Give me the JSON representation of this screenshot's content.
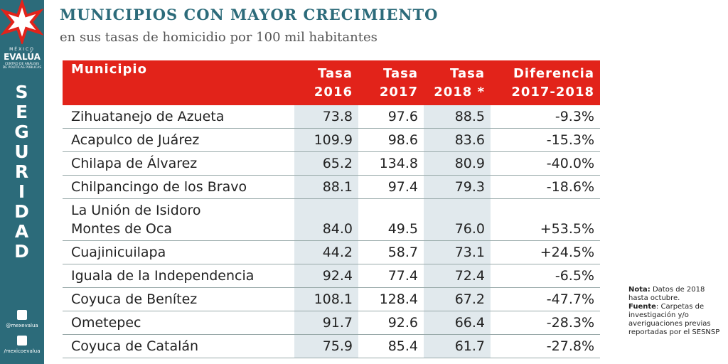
{
  "sidebar": {
    "logo_line1": "MÉXICO",
    "logo_line2": "EVALÚA",
    "logo_line3": "CENTRO DE ANÁLISIS",
    "logo_line4": "DE POLÍTICAS PÚBLICAS",
    "section": "SEGURIDAD",
    "twitter": "@mexevalua",
    "facebook": "/mexicoevalua"
  },
  "header": {
    "title": "MUNICIPIOS CON MAYOR CRECIMIENTO",
    "subtitle": "en sus tasas de homicidio por 100 mil habitantes"
  },
  "table": {
    "columns": [
      [
        "Municipio"
      ],
      [
        "Tasa",
        "2016"
      ],
      [
        "Tasa",
        "2017"
      ],
      [
        "Tasa",
        "2018 *"
      ],
      [
        "Diferencia",
        "2017-2018"
      ]
    ],
    "rows": [
      [
        [
          "Zihuatanejo de Azueta"
        ],
        "73.8",
        "97.6",
        "88.5",
        "-9.3%"
      ],
      [
        [
          "Acapulco de Juárez"
        ],
        "109.9",
        "98.6",
        "83.6",
        "-15.3%"
      ],
      [
        [
          "Chilapa de Álvarez"
        ],
        "65.2",
        "134.8",
        "80.9",
        "-40.0%"
      ],
      [
        [
          "Chilpancingo de los Bravo"
        ],
        "88.1",
        "97.4",
        "79.3",
        "-18.6%"
      ],
      [
        [
          "La Unión de Isidoro",
          "Montes de Oca"
        ],
        "84.0",
        "49.5",
        "76.0",
        "+53.5%"
      ],
      [
        [
          "Cuajinicuilapa"
        ],
        "44.2",
        "58.7",
        "73.1",
        "+24.5%"
      ],
      [
        [
          "Iguala de la Independencia"
        ],
        "92.4",
        "77.4",
        "72.4",
        "-6.5%"
      ],
      [
        [
          "Coyuca de Benítez"
        ],
        "108.1",
        "128.4",
        "67.2",
        "-47.7%"
      ],
      [
        [
          "Ometepec"
        ],
        "91.7",
        "92.6",
        "66.4",
        "-28.3%"
      ],
      [
        [
          "Coyuca de Catalán"
        ],
        "75.9",
        "85.4",
        "61.7",
        "-27.8%"
      ]
    ]
  },
  "note": {
    "label": "Nota:",
    "text": " Datos de 2018 hasta octubre.",
    "source_label": "Fuente",
    "source_text": ": Carpetas de investigación y/o averiguaciones previas reportadas por el SESNSP"
  }
}
